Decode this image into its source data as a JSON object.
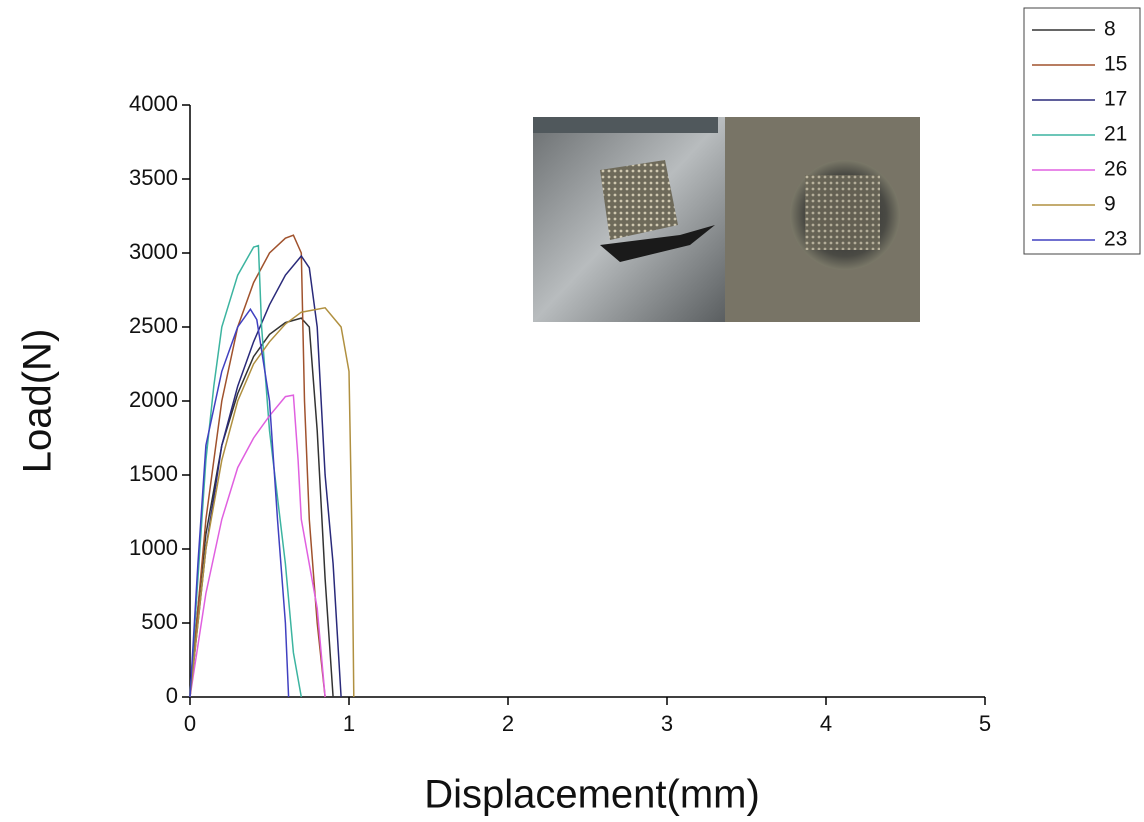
{
  "chart_data": {
    "type": "line",
    "x_label": "Displacement(mm)",
    "y_label": "Load(N)",
    "xlim": [
      0,
      5
    ],
    "xticks": [
      0,
      1,
      2,
      3,
      4,
      5
    ],
    "ylim": [
      0,
      4000
    ],
    "yticks": [
      0,
      500,
      1000,
      1500,
      2000,
      2500,
      3000,
      3500,
      4000
    ],
    "grid": false,
    "legend": "top-right",
    "series": [
      {
        "name": "8",
        "color": "#333333",
        "x": [
          0,
          0.05,
          0.1,
          0.2,
          0.3,
          0.4,
          0.5,
          0.6,
          0.7,
          0.75,
          0.8,
          0.85,
          0.9
        ],
        "values": [
          0,
          600,
          1100,
          1700,
          2050,
          2300,
          2450,
          2530,
          2560,
          2500,
          1800,
          800,
          0
        ]
      },
      {
        "name": "15",
        "color": "#a0522d",
        "x": [
          0,
          0.1,
          0.2,
          0.3,
          0.4,
          0.5,
          0.6,
          0.65,
          0.7,
          0.72,
          0.75,
          0.8,
          0.85
        ],
        "values": [
          0,
          1200,
          2000,
          2500,
          2800,
          3000,
          3100,
          3120,
          3000,
          2000,
          1200,
          500,
          0
        ]
      },
      {
        "name": "17",
        "color": "#2a2a7a",
        "x": [
          0,
          0.1,
          0.2,
          0.3,
          0.4,
          0.5,
          0.6,
          0.7,
          0.75,
          0.8,
          0.85,
          0.9,
          0.95
        ],
        "values": [
          0,
          1000,
          1700,
          2100,
          2400,
          2650,
          2850,
          2980,
          2900,
          2500,
          1500,
          900,
          0
        ]
      },
      {
        "name": "21",
        "color": "#3cb4a0",
        "x": [
          0,
          0.05,
          0.1,
          0.15,
          0.2,
          0.3,
          0.4,
          0.43,
          0.45,
          0.5,
          0.6,
          0.65,
          0.7
        ],
        "values": [
          0,
          800,
          1600,
          2100,
          2500,
          2850,
          3040,
          3050,
          2500,
          1800,
          900,
          300,
          0
        ]
      },
      {
        "name": "26",
        "color": "#e060e0",
        "x": [
          0,
          0.1,
          0.2,
          0.3,
          0.4,
          0.5,
          0.6,
          0.65,
          0.68,
          0.7,
          0.8,
          0.85
        ],
        "values": [
          0,
          700,
          1200,
          1550,
          1750,
          1900,
          2030,
          2040,
          1600,
          1200,
          600,
          0
        ]
      },
      {
        "name": "9",
        "color": "#b09040",
        "x": [
          0,
          0.1,
          0.2,
          0.3,
          0.4,
          0.5,
          0.6,
          0.7,
          0.85,
          0.95,
          1.0,
          1.02,
          1.03
        ],
        "values": [
          0,
          1000,
          1600,
          2000,
          2250,
          2400,
          2520,
          2600,
          2630,
          2500,
          2200,
          1000,
          0
        ]
      },
      {
        "name": "23",
        "color": "#4040c0",
        "x": [
          0,
          0.05,
          0.1,
          0.2,
          0.3,
          0.38,
          0.42,
          0.5,
          0.55,
          0.6,
          0.62
        ],
        "values": [
          0,
          900,
          1700,
          2200,
          2500,
          2620,
          2550,
          2000,
          1200,
          500,
          0
        ]
      }
    ]
  }
}
